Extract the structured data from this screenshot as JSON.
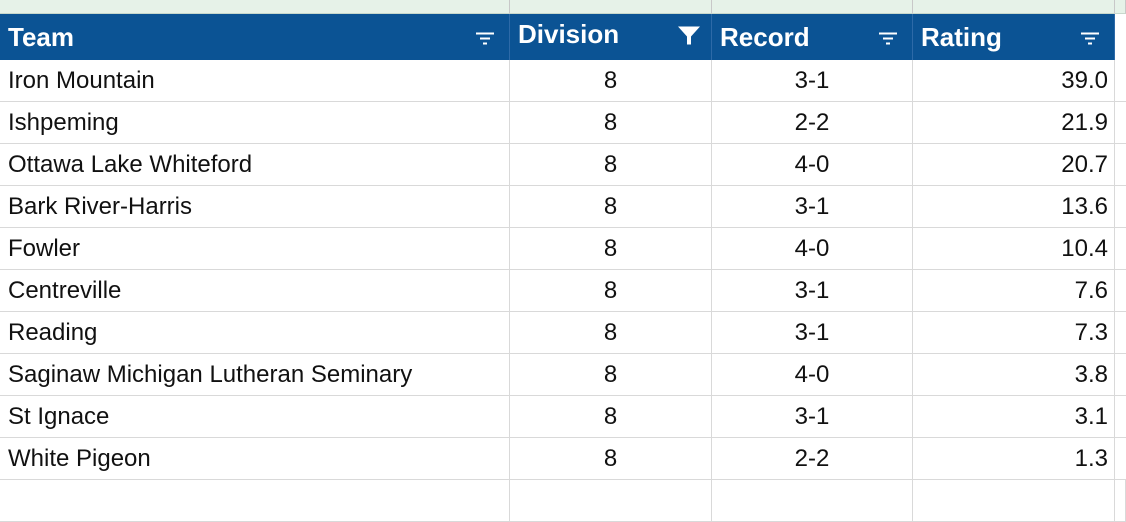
{
  "table": {
    "header": [
      "Team",
      "Division",
      "Record",
      "Rating"
    ],
    "rows": [
      [
        "Iron Mountain",
        "8",
        "3-1",
        "39.0"
      ],
      [
        "Ishpeming",
        "8",
        "2-2",
        "21.9"
      ],
      [
        "Ottawa Lake Whiteford",
        "8",
        "4-0",
        "20.7"
      ],
      [
        "Bark River-Harris",
        "8",
        "3-1",
        "13.6"
      ],
      [
        "Fowler",
        "8",
        "4-0",
        "10.4"
      ],
      [
        "Centreville",
        "8",
        "3-1",
        "7.6"
      ],
      [
        "Reading",
        "8",
        "3-1",
        "7.3"
      ],
      [
        "Saginaw Michigan Lutheran Seminary",
        "8",
        "4-0",
        "3.8"
      ],
      [
        "St Ignace",
        "8",
        "3-1",
        "3.1"
      ],
      [
        "White Pigeon",
        "8",
        "2-2",
        "1.3"
      ]
    ]
  }
}
